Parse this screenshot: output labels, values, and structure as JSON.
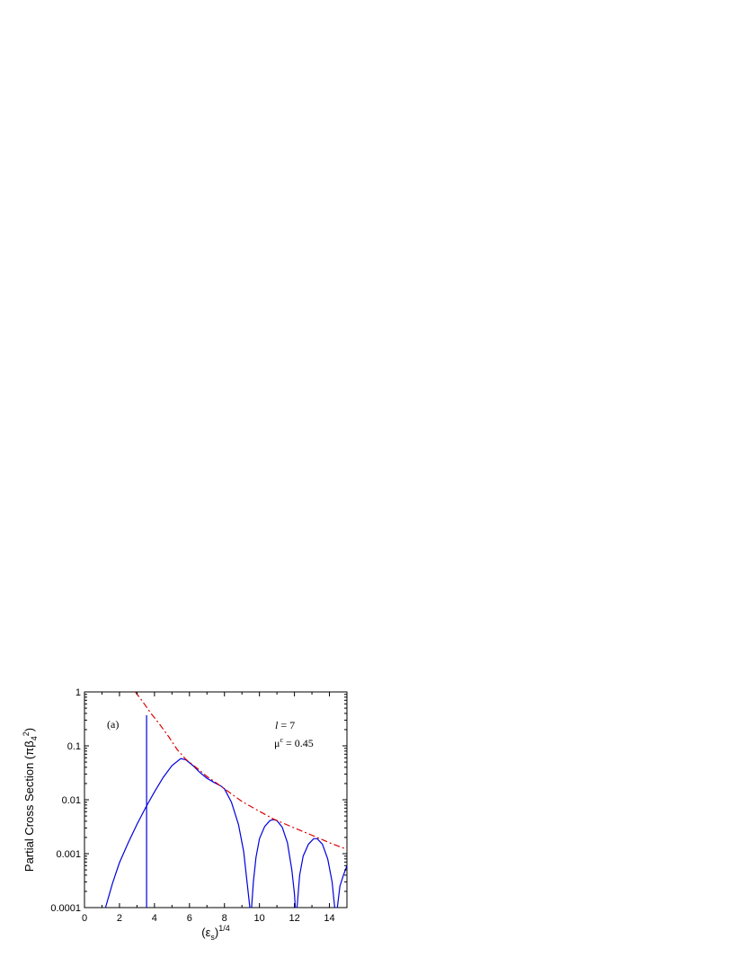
{
  "chart_data": {
    "type": "line",
    "panel_label": "(a)",
    "title": "",
    "xlabel": {
      "base": "(ε",
      "sub": "s",
      "close": ")",
      "sup": "1/4"
    },
    "ylabel": {
      "main": "Partial Cross Section (πβ",
      "sub": "4",
      "sup": "2",
      "close": ")"
    },
    "xlim": [
      0,
      15
    ],
    "ylim": [
      0.0001,
      1
    ],
    "yscale": "log",
    "x_ticks": [
      0,
      2,
      4,
      6,
      8,
      10,
      12,
      14
    ],
    "x_tick_labels": [
      "0",
      "2",
      "4",
      "6",
      "8",
      "10",
      "12",
      "14"
    ],
    "y_ticks": [
      0.0001,
      0.001,
      0.01,
      0.1,
      1
    ],
    "y_tick_labels": [
      "0.0001",
      "0.001",
      "0.01",
      "0.1",
      "1"
    ],
    "grid": false,
    "annotations": {
      "l_label": "l",
      "l_value": " = 7",
      "mu_label": "μ",
      "mu_sup": "c",
      "mu_value": " = 0.45"
    },
    "series": [
      {
        "style": "solid",
        "color": "#0000dd",
        "points": [
          [
            1.2,
            0.0001
          ],
          [
            1.6,
            0.00028
          ],
          [
            2.0,
            0.00068
          ],
          [
            2.5,
            0.0016
          ],
          [
            3.0,
            0.0035
          ],
          [
            3.5,
            0.0072
          ],
          [
            4.0,
            0.014
          ],
          [
            4.5,
            0.026
          ],
          [
            5.0,
            0.043
          ],
          [
            5.5,
            0.058
          ],
          [
            5.8,
            0.055
          ],
          [
            6.2,
            0.043
          ],
          [
            6.6,
            0.032
          ],
          [
            7.0,
            0.025
          ],
          [
            7.4,
            0.021
          ],
          [
            7.8,
            0.018
          ],
          [
            8.0,
            0.016
          ],
          [
            8.4,
            0.009
          ],
          [
            8.8,
            0.0035
          ],
          [
            9.1,
            0.0011
          ],
          [
            9.35,
            0.0002
          ],
          [
            9.45,
            0.0001
          ]
        ]
      },
      {
        "style": "solid",
        "color": "#0000dd",
        "points": [
          [
            9.55,
            0.0001
          ],
          [
            9.65,
            0.0003
          ],
          [
            9.8,
            0.00085
          ],
          [
            10.0,
            0.0019
          ],
          [
            10.3,
            0.0032
          ],
          [
            10.6,
            0.0041
          ],
          [
            10.8,
            0.0043
          ],
          [
            11.0,
            0.0041
          ],
          [
            11.3,
            0.0031
          ],
          [
            11.6,
            0.0016
          ],
          [
            11.85,
            0.0005
          ],
          [
            12.0,
            0.00018
          ],
          [
            12.05,
            0.0001
          ]
        ]
      },
      {
        "style": "solid",
        "color": "#0000dd",
        "points": [
          [
            12.15,
            0.0001
          ],
          [
            12.3,
            0.0004
          ],
          [
            12.5,
            0.0009
          ],
          [
            12.8,
            0.0015
          ],
          [
            13.1,
            0.0019
          ],
          [
            13.3,
            0.0019
          ],
          [
            13.6,
            0.0015
          ],
          [
            13.9,
            0.0008
          ],
          [
            14.15,
            0.0003
          ],
          [
            14.3,
            0.0001
          ]
        ]
      },
      {
        "style": "solid",
        "color": "#0000dd",
        "points": [
          [
            14.45,
            0.0001
          ],
          [
            14.6,
            0.00025
          ],
          [
            14.8,
            0.0004
          ],
          [
            15.0,
            0.0006
          ]
        ]
      },
      {
        "style": "solid",
        "color": "#0000dd",
        "points": [
          [
            3.55,
            0.0001
          ],
          [
            3.55,
            0.37
          ]
        ]
      },
      {
        "style": "dashdot",
        "color": "#dd0000",
        "points": [
          [
            2.9,
            1.0
          ],
          [
            3.3,
            0.68
          ],
          [
            3.8,
            0.4
          ],
          [
            4.3,
            0.25
          ],
          [
            4.8,
            0.15
          ],
          [
            5.3,
            0.085
          ],
          [
            5.8,
            0.056
          ],
          [
            6.5,
            0.037
          ],
          [
            7.0,
            0.027
          ],
          [
            7.5,
            0.021
          ],
          [
            8.0,
            0.016
          ],
          [
            9.0,
            0.0093
          ],
          [
            10.0,
            0.0061
          ],
          [
            10.8,
            0.0044
          ],
          [
            12.0,
            0.003
          ],
          [
            13.0,
            0.0022
          ],
          [
            14.0,
            0.0016
          ],
          [
            15.0,
            0.0012
          ]
        ]
      }
    ]
  }
}
